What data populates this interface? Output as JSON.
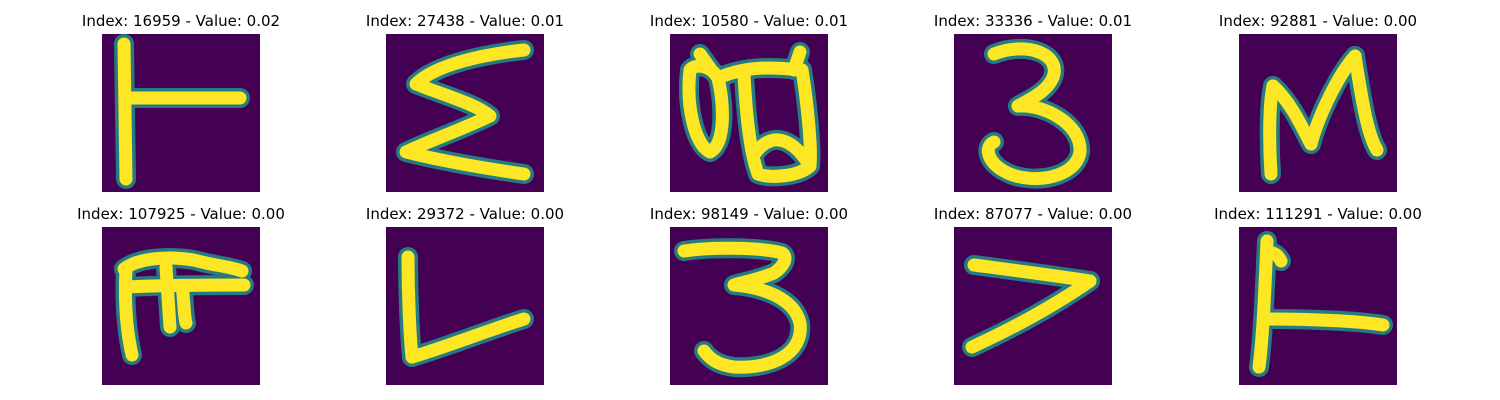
{
  "colors": {
    "background": "#440154",
    "edge": "#21918c",
    "stroke": "#fde725"
  },
  "panels": [
    {
      "title": "Index: 16959 - Value: 0.02"
    },
    {
      "title": "Index: 27438 - Value: 0.01"
    },
    {
      "title": "Index: 10580 - Value: 0.01"
    },
    {
      "title": "Index: 33336 - Value: 0.01"
    },
    {
      "title": "Index: 92881 - Value: 0.00"
    },
    {
      "title": "Index: 107925 - Value: 0.00"
    },
    {
      "title": "Index: 29372 - Value: 0.00"
    },
    {
      "title": "Index: 98149 - Value: 0.00"
    },
    {
      "title": "Index: 87077 - Value: 0.00"
    },
    {
      "title": "Index: 111291 - Value: 0.00"
    }
  ]
}
